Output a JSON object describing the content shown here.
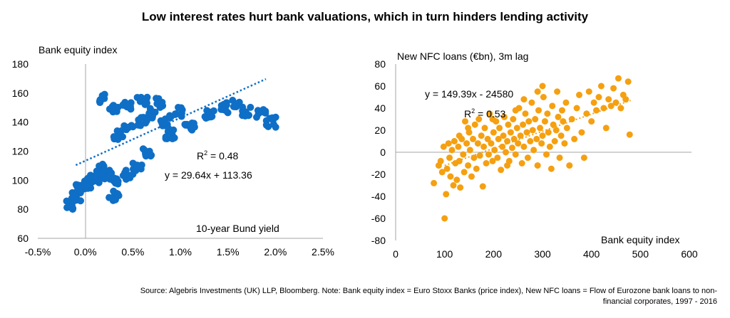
{
  "title": "Low interest rates hurt bank valuations, which in turn hinders lending activity",
  "source_line1": "Source: Algebris Investments (UK) LLP, Bloomberg. Note: Bank equity index = Euro Stoxx Banks (price index), New NFC loans = Flow of Eurozone bank loans to non-",
  "source_line2": "financial corporates, 1997 - 2016",
  "colors": {
    "left_series": "#0f6fc6",
    "right_series": "#f5a011",
    "axis": "#a6a6a6"
  },
  "chart_data": [
    {
      "type": "scatter",
      "ylabel": "Bank equity index",
      "xlabel": "10-year Bund yield",
      "xlim": [
        -0.5,
        2.5
      ],
      "ylim": [
        60,
        180
      ],
      "x_ticks": [
        "-0.5%",
        "0.0%",
        "0.5%",
        "1.0%",
        "1.5%",
        "2.0%",
        "2.5%"
      ],
      "y_ticks": [
        "60",
        "80",
        "100",
        "120",
        "140",
        "160",
        "180"
      ],
      "r2_prefix": "R",
      "r2_sup": "2",
      "r2_suffix": " = 0.48",
      "equation": "y = 29.64x + 113.36",
      "trendline": {
        "slope": 29.64,
        "intercept": 113.36,
        "x_range": [
          -0.1,
          1.9
        ]
      },
      "clusters": [
        {
          "x": -0.15,
          "y": 83
        },
        {
          "x": -0.1,
          "y": 88
        },
        {
          "x": -0.05,
          "y": 94
        },
        {
          "x": 0.0,
          "y": 97
        },
        {
          "x": 0.05,
          "y": 98
        },
        {
          "x": 0.1,
          "y": 100
        },
        {
          "x": 0.15,
          "y": 104
        },
        {
          "x": 0.2,
          "y": 108
        },
        {
          "x": 0.25,
          "y": 104
        },
        {
          "x": 0.3,
          "y": 98
        },
        {
          "x": 0.3,
          "y": 89
        },
        {
          "x": 0.45,
          "y": 104
        },
        {
          "x": 0.55,
          "y": 110
        },
        {
          "x": 0.65,
          "y": 120
        },
        {
          "x": 0.6,
          "y": 140
        },
        {
          "x": 0.45,
          "y": 136
        },
        {
          "x": 0.35,
          "y": 131
        },
        {
          "x": 0.7,
          "y": 146
        },
        {
          "x": 0.85,
          "y": 141
        },
        {
          "x": 1.0,
          "y": 147
        },
        {
          "x": 0.2,
          "y": 156
        },
        {
          "x": 0.3,
          "y": 149
        },
        {
          "x": 0.45,
          "y": 152
        },
        {
          "x": 0.6,
          "y": 155
        },
        {
          "x": 0.8,
          "y": 153
        },
        {
          "x": 0.9,
          "y": 132
        },
        {
          "x": 1.1,
          "y": 138
        },
        {
          "x": 1.3,
          "y": 145
        },
        {
          "x": 1.45,
          "y": 150
        },
        {
          "x": 1.6,
          "y": 153
        },
        {
          "x": 1.7,
          "y": 147
        },
        {
          "x": 1.85,
          "y": 146
        },
        {
          "x": 1.95,
          "y": 140
        }
      ]
    },
    {
      "type": "scatter",
      "ylabel": "New NFC loans (€bn), 3m lag",
      "xlabel": "Bank equity index",
      "xlim": [
        0,
        600
      ],
      "ylim": [
        -80,
        80
      ],
      "x_ticks": [
        "0",
        "100",
        "200",
        "300",
        "400",
        "500",
        "600"
      ],
      "y_ticks": [
        "-80",
        "-60",
        "-40",
        "-20",
        "0",
        "20",
        "40",
        "60",
        "80"
      ],
      "equation": "y = 149.39x - 24580",
      "r2_prefix": "R",
      "r2_sup": "2",
      "r2_suffix": " = 0.53",
      "trendline": {
        "x_range": [
          100,
          480
        ],
        "y_range": [
          -12,
          47
        ]
      },
      "points": [
        [
          78,
          -28
        ],
        [
          88,
          -12
        ],
        [
          92,
          -8
        ],
        [
          95,
          -18
        ],
        [
          98,
          5
        ],
        [
          100,
          -60
        ],
        [
          103,
          -38
        ],
        [
          105,
          -15
        ],
        [
          108,
          8
        ],
        [
          110,
          -5
        ],
        [
          112,
          -22
        ],
        [
          115,
          2
        ],
        [
          118,
          -30
        ],
        [
          120,
          10
        ],
        [
          122,
          -10
        ],
        [
          125,
          -25
        ],
        [
          128,
          5
        ],
        [
          130,
          -8
        ],
        [
          132,
          -32
        ],
        [
          135,
          12
        ],
        [
          138,
          -2
        ],
        [
          140,
          -18
        ],
        [
          142,
          28
        ],
        [
          145,
          8
        ],
        [
          148,
          -12
        ],
        [
          150,
          18
        ],
        [
          152,
          2
        ],
        [
          155,
          -22
        ],
        [
          158,
          12
        ],
        [
          160,
          -5
        ],
        [
          162,
          25
        ],
        [
          165,
          -15
        ],
        [
          168,
          8
        ],
        [
          170,
          30
        ],
        [
          172,
          -3
        ],
        [
          175,
          15
        ],
        [
          178,
          -31
        ],
        [
          180,
          5
        ],
        [
          182,
          22
        ],
        [
          185,
          -10
        ],
        [
          188,
          12
        ],
        [
          190,
          -2
        ],
        [
          192,
          35
        ],
        [
          195,
          8
        ],
        [
          198,
          -8
        ],
        [
          200,
          18
        ],
        [
          202,
          2
        ],
        [
          205,
          28
        ],
        [
          208,
          -5
        ],
        [
          210,
          12
        ],
        [
          212,
          22
        ],
        [
          215,
          -16
        ],
        [
          218,
          5
        ],
        [
          220,
          15
        ],
        [
          222,
          32
        ],
        [
          225,
          0
        ],
        [
          228,
          10
        ],
        [
          230,
          25
        ],
        [
          232,
          -8
        ],
        [
          235,
          18
        ],
        [
          238,
          4
        ],
        [
          240,
          30
        ],
        [
          242,
          12
        ],
        [
          245,
          -2
        ],
        [
          248,
          22
        ],
        [
          250,
          8
        ],
        [
          252,
          40
        ],
        [
          255,
          15
        ],
        [
          258,
          -10
        ],
        [
          260,
          25
        ],
        [
          262,
          5
        ],
        [
          265,
          35
        ],
        [
          268,
          18
        ],
        [
          270,
          -5
        ],
        [
          272,
          28
        ],
        [
          275,
          10
        ],
        [
          278,
          45
        ],
        [
          280,
          20
        ],
        [
          282,
          2
        ],
        [
          285,
          30
        ],
        [
          288,
          12
        ],
        [
          290,
          -12
        ],
        [
          292,
          38
        ],
        [
          295,
          22
        ],
        [
          298,
          8
        ],
        [
          300,
          15
        ],
        [
          302,
          50
        ],
        [
          305,
          28
        ],
        [
          308,
          -2
        ],
        [
          310,
          35
        ],
        [
          312,
          18
        ],
        [
          315,
          5
        ],
        [
          318,
          -15
        ],
        [
          320,
          42
        ],
        [
          322,
          25
        ],
        [
          325,
          10
        ],
        [
          328,
          20
        ],
        [
          330,
          55
        ],
        [
          332,
          32
        ],
        [
          335,
          -5
        ],
        [
          338,
          15
        ],
        [
          340,
          38
        ],
        [
          342,
          28
        ],
        [
          345,
          8
        ],
        [
          348,
          45
        ],
        [
          350,
          22
        ],
        [
          355,
          -12
        ],
        [
          360,
          30
        ],
        [
          365,
          12
        ],
        [
          370,
          40
        ],
        [
          375,
          52
        ],
        [
          380,
          18
        ],
        [
          385,
          -5
        ],
        [
          390,
          35
        ],
        [
          395,
          55
        ],
        [
          400,
          28
        ],
        [
          405,
          45
        ],
        [
          410,
          38
        ],
        [
          415,
          50
        ],
        [
          420,
          60
        ],
        [
          425,
          40
        ],
        [
          430,
          22
        ],
        [
          435,
          48
        ],
        [
          440,
          42
        ],
        [
          445,
          58
        ],
        [
          450,
          45
        ],
        [
          455,
          67
        ],
        [
          460,
          40
        ],
        [
          465,
          52
        ],
        [
          470,
          48
        ],
        [
          475,
          64
        ],
        [
          478,
          16
        ],
        [
          245,
          38
        ],
        [
          262,
          48
        ],
        [
          290,
          55
        ],
        [
          300,
          60
        ],
        [
          228,
          -12
        ],
        [
          198,
          30
        ],
        [
          148,
          22
        ],
        [
          130,
          15
        ]
      ]
    }
  ]
}
